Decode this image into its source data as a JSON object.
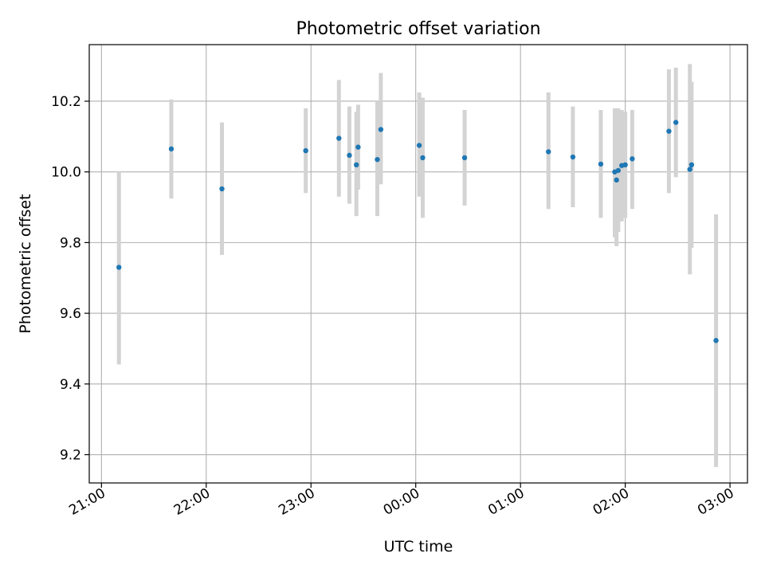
{
  "chart_data": {
    "type": "scatter",
    "title": "Photometric offset variation",
    "xlabel": "UTC time",
    "ylabel": "Photometric offset",
    "x_type": "time",
    "xlim": [
      "20:53",
      "03:10"
    ],
    "ylim": [
      9.12,
      10.36
    ],
    "xticks": [
      {
        "time": "21:00",
        "label": "21:00"
      },
      {
        "time": "22:00",
        "label": "22:00"
      },
      {
        "time": "23:00",
        "label": "23:00"
      },
      {
        "time": "00:00",
        "label": "00:00"
      },
      {
        "time": "01:00",
        "label": "01:00"
      },
      {
        "time": "02:00",
        "label": "02:00"
      },
      {
        "time": "03:00",
        "label": "03:00"
      }
    ],
    "yticks": [
      {
        "value": 9.2,
        "label": "9.2"
      },
      {
        "value": 9.4,
        "label": "9.4"
      },
      {
        "value": 9.6,
        "label": "9.6"
      },
      {
        "value": 9.8,
        "label": "9.8"
      },
      {
        "value": 10.0,
        "label": "10.0"
      },
      {
        "value": 10.2,
        "label": "10.2"
      }
    ],
    "grid": true,
    "colors": {
      "marker": "#1f77b4",
      "errorbar": "#d3d3d3",
      "grid": "#b0b0b0",
      "axes": "#000000"
    },
    "points": [
      {
        "x": "21:10",
        "y": 9.73,
        "ylow": 9.455,
        "yhigh": 10.0
      },
      {
        "x": "21:40",
        "y": 10.065,
        "ylow": 9.925,
        "yhigh": 10.205
      },
      {
        "x": "22:09",
        "y": 9.952,
        "ylow": 9.765,
        "yhigh": 10.14
      },
      {
        "x": "22:57",
        "y": 10.06,
        "ylow": 9.94,
        "yhigh": 10.18
      },
      {
        "x": "23:16",
        "y": 10.095,
        "ylow": 9.93,
        "yhigh": 10.26
      },
      {
        "x": "23:22",
        "y": 10.047,
        "ylow": 9.91,
        "yhigh": 10.185
      },
      {
        "x": "23:26",
        "y": 10.02,
        "ylow": 9.875,
        "yhigh": 10.17
      },
      {
        "x": "23:27",
        "y": 10.07,
        "ylow": 9.95,
        "yhigh": 10.19
      },
      {
        "x": "23:38",
        "y": 10.035,
        "ylow": 9.875,
        "yhigh": 10.2
      },
      {
        "x": "23:40",
        "y": 10.12,
        "ylow": 9.965,
        "yhigh": 10.28
      },
      {
        "x": "00:02",
        "y": 10.075,
        "ylow": 9.93,
        "yhigh": 10.225
      },
      {
        "x": "00:04",
        "y": 10.04,
        "ylow": 9.87,
        "yhigh": 10.21
      },
      {
        "x": "00:28",
        "y": 10.04,
        "ylow": 9.905,
        "yhigh": 10.175
      },
      {
        "x": "01:16",
        "y": 10.057,
        "ylow": 9.895,
        "yhigh": 10.225
      },
      {
        "x": "01:30",
        "y": 10.042,
        "ylow": 9.9,
        "yhigh": 10.185
      },
      {
        "x": "01:46",
        "y": 10.022,
        "ylow": 9.87,
        "yhigh": 10.175
      },
      {
        "x": "01:54",
        "y": 10.0,
        "ylow": 9.815,
        "yhigh": 10.18
      },
      {
        "x": "01:55",
        "y": 9.977,
        "ylow": 9.79,
        "yhigh": 10.175
      },
      {
        "x": "01:56",
        "y": 10.004,
        "ylow": 9.83,
        "yhigh": 10.18
      },
      {
        "x": "01:58",
        "y": 10.018,
        "ylow": 9.86,
        "yhigh": 10.175
      },
      {
        "x": "02:00",
        "y": 10.02,
        "ylow": 9.87,
        "yhigh": 10.17
      },
      {
        "x": "02:04",
        "y": 10.037,
        "ylow": 9.895,
        "yhigh": 10.175
      },
      {
        "x": "02:25",
        "y": 10.115,
        "ylow": 9.94,
        "yhigh": 10.29
      },
      {
        "x": "02:29",
        "y": 10.14,
        "ylow": 9.985,
        "yhigh": 10.295
      },
      {
        "x": "02:37",
        "y": 10.007,
        "ylow": 9.71,
        "yhigh": 10.305
      },
      {
        "x": "02:38",
        "y": 10.02,
        "ylow": 9.785,
        "yhigh": 10.255
      },
      {
        "x": "02:52",
        "y": 9.523,
        "ylow": 9.165,
        "yhigh": 9.88
      }
    ]
  }
}
